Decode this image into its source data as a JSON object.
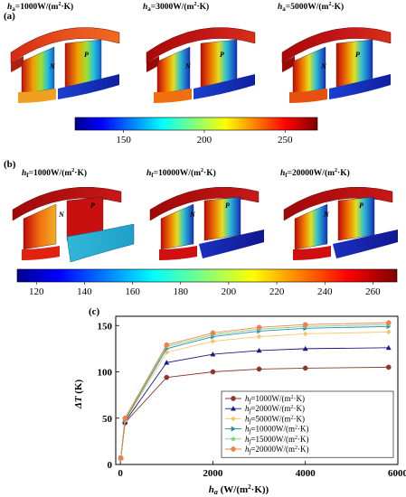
{
  "panel_a": {
    "label": "(a)",
    "titles": [
      {
        "sym": "h",
        "sub": "a",
        "text": "=1000W/(m",
        "sup": "2",
        "tail": "·K)"
      },
      {
        "sym": "h",
        "sub": "a",
        "text": "=3000W/(m",
        "sup": "2",
        "tail": "·K)"
      },
      {
        "sym": "h",
        "sub": "a",
        "text": "=5000W/(m",
        "sup": "2",
        "tail": "·K)"
      }
    ],
    "colorbar": {
      "ticks": [
        "150",
        "200",
        "250"
      ],
      "min": 120,
      "max": 270,
      "tick_values": [
        150,
        200,
        250
      ]
    }
  },
  "panel_b": {
    "label": "(b)",
    "titles": [
      {
        "sym": "h",
        "sub": "f",
        "text": "=1000W/(m",
        "sup": "2",
        "tail": "·K)"
      },
      {
        "sym": "h",
        "sub": "f",
        "text": "=10000W/(m",
        "sup": "2",
        "tail": "·K)"
      },
      {
        "sym": "h",
        "sub": "f",
        "text": "=20000W/(m",
        "sup": "2",
        "tail": "·K)"
      }
    ],
    "colorbar": {
      "ticks": [
        "120",
        "140",
        "160",
        "180",
        "200",
        "220",
        "240",
        "260"
      ],
      "min": 112,
      "max": 270,
      "tick_values": [
        120,
        140,
        160,
        180,
        200,
        220,
        240,
        260
      ]
    }
  },
  "legs": {
    "n_label": "N",
    "p_label": "P"
  },
  "chart_data": {
    "type": "line",
    "panel_label": "(c)",
    "xlabel_sym": "h",
    "xlabel_sub": "a",
    "xlabel_rest": " (W/(m",
    "xlabel_sup": "2",
    "xlabel_tail": "·K))",
    "ylabel_sym": "ΔT",
    "ylabel_rest": " (K)",
    "xlim": [
      -100,
      6000
    ],
    "ylim": [
      0,
      160
    ],
    "xticks": [
      0,
      2000,
      4000,
      6000
    ],
    "yticks": [
      0,
      50,
      100,
      150
    ],
    "legend_position": "bottom-right",
    "x": [
      10,
      100,
      1000,
      2000,
      3000,
      4000,
      5800
    ],
    "series": [
      {
        "name_sym": "h",
        "name_sub": "f",
        "name_rest": "=1000W/(m",
        "name_sup": "2",
        "name_tail": "·K)",
        "color": "#8b3a2a",
        "marker": "circle",
        "values": [
          7,
          45,
          94,
          100,
          103,
          104,
          105
        ]
      },
      {
        "name_sym": "h",
        "name_sub": "f",
        "name_rest": "=2000W/(m",
        "name_sup": "2",
        "name_tail": "·K)",
        "color": "#1a1a80",
        "marker": "triangle-up",
        "values": [
          7,
          46,
          110,
          119,
          123,
          125,
          126
        ]
      },
      {
        "name_sym": "h",
        "name_sub": "f",
        "name_rest": "=5000W/(m",
        "name_sup": "2",
        "name_tail": "·K)",
        "color": "#f7c46b",
        "marker": "diamond",
        "values": [
          7,
          47,
          121,
          133,
          138,
          141,
          143
        ]
      },
      {
        "name_sym": "h",
        "name_sub": "f",
        "name_rest": "=10000W/(m",
        "name_sup": "2",
        "name_tail": "·K)",
        "color": "#2a8ab0",
        "marker": "triangle-right",
        "values": [
          7,
          48,
          125,
          138,
          144,
          147,
          149
        ]
      },
      {
        "name_sym": "h",
        "name_sub": "f",
        "name_rest": "=15000W/(m",
        "name_sup": "2",
        "name_tail": "·K)",
        "color": "#7ad07a",
        "marker": "star",
        "values": [
          7,
          49,
          127,
          140,
          146,
          149,
          151
        ]
      },
      {
        "name_sym": "h",
        "name_sub": "f",
        "name_rest": "=20000W/(m",
        "name_sup": "2",
        "name_tail": "·K)",
        "color": "#f08050",
        "marker": "circle",
        "values": [
          7,
          50,
          129,
          142,
          148,
          151,
          153
        ]
      }
    ]
  }
}
